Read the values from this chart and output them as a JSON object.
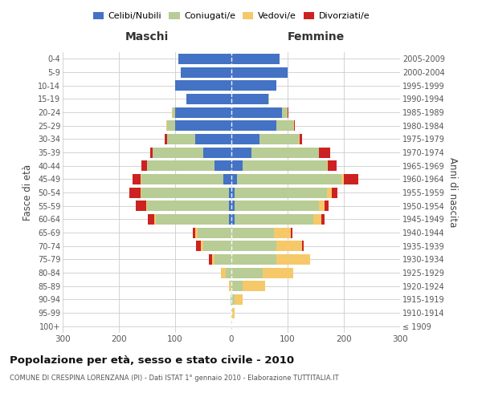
{
  "age_groups": [
    "100+",
    "95-99",
    "90-94",
    "85-89",
    "80-84",
    "75-79",
    "70-74",
    "65-69",
    "60-64",
    "55-59",
    "50-54",
    "45-49",
    "40-44",
    "35-39",
    "30-34",
    "25-29",
    "20-24",
    "15-19",
    "10-14",
    "5-9",
    "0-4"
  ],
  "birth_years": [
    "≤ 1909",
    "1910-1914",
    "1915-1919",
    "1920-1924",
    "1925-1929",
    "1930-1934",
    "1935-1939",
    "1940-1944",
    "1945-1949",
    "1950-1954",
    "1955-1959",
    "1960-1964",
    "1965-1969",
    "1970-1974",
    "1975-1979",
    "1980-1984",
    "1985-1989",
    "1990-1994",
    "1995-1999",
    "2000-2004",
    "2005-2009"
  ],
  "maschi": {
    "celibi": [
      0,
      0,
      0,
      0,
      0,
      0,
      0,
      0,
      5,
      5,
      5,
      15,
      30,
      50,
      65,
      100,
      100,
      80,
      100,
      90,
      95
    ],
    "coniugati": [
      0,
      0,
      1,
      2,
      10,
      30,
      50,
      60,
      130,
      145,
      155,
      145,
      120,
      90,
      50,
      15,
      5,
      0,
      0,
      0,
      0
    ],
    "vedovi": [
      0,
      0,
      0,
      3,
      8,
      5,
      5,
      5,
      2,
      2,
      1,
      1,
      0,
      0,
      0,
      1,
      1,
      0,
      0,
      0,
      0
    ],
    "divorziati": [
      0,
      0,
      0,
      0,
      0,
      5,
      8,
      3,
      12,
      18,
      20,
      15,
      10,
      5,
      3,
      0,
      0,
      0,
      0,
      0,
      0
    ]
  },
  "femmine": {
    "nubili": [
      0,
      0,
      0,
      0,
      0,
      0,
      0,
      0,
      5,
      5,
      5,
      10,
      20,
      35,
      50,
      80,
      90,
      65,
      80,
      100,
      85
    ],
    "coniugate": [
      0,
      2,
      5,
      20,
      55,
      80,
      80,
      75,
      140,
      150,
      165,
      185,
      150,
      120,
      70,
      30,
      10,
      2,
      0,
      0,
      0
    ],
    "vedove": [
      0,
      3,
      15,
      40,
      55,
      60,
      45,
      30,
      15,
      10,
      8,
      5,
      2,
      1,
      1,
      1,
      0,
      0,
      0,
      0,
      0
    ],
    "divorziate": [
      0,
      0,
      0,
      0,
      0,
      0,
      3,
      3,
      5,
      8,
      10,
      25,
      15,
      20,
      5,
      2,
      1,
      0,
      0,
      0,
      0
    ]
  },
  "colors": {
    "celibi": "#4472C4",
    "coniugati": "#b8cc96",
    "vedovi": "#f5c96a",
    "divorziati": "#cc2222"
  },
  "xlim": 300,
  "title": "Popolazione per età, sesso e stato civile - 2010",
  "subtitle": "COMUNE DI CRESPINA LORENZANA (PI) - Dati ISTAT 1° gennaio 2010 - Elaborazione TUTTITALIA.IT",
  "ylabel_left": "Fasce di età",
  "ylabel_right": "Anni di nascita",
  "xlabel_maschi": "Maschi",
  "xlabel_femmine": "Femmine",
  "bg_color": "#ffffff"
}
